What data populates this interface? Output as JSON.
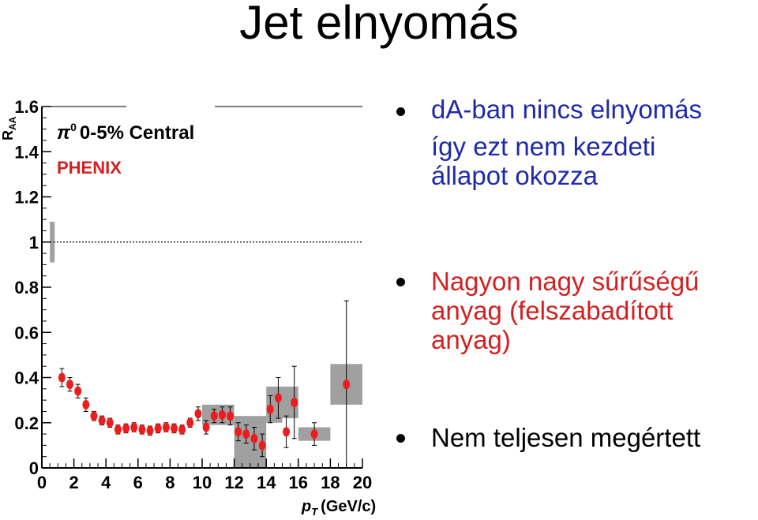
{
  "slide": {
    "title": "Jet elnyomás"
  },
  "bullets": [
    {
      "lines": [
        "dA-ban nincs elnyomás",
        "így ezt nem kezdeti",
        "állapot okozza"
      ],
      "color": "#1f2aa8"
    },
    {
      "lines": [
        "Nagyon nagy sűrűségű",
        "anyag (felszabadított",
        "anyag)"
      ],
      "color": "#d42020"
    },
    {
      "lines": [
        "Nem teljesen megértett"
      ],
      "color": "#000000"
    }
  ],
  "chart_data": {
    "type": "scatter",
    "xlabel": "p",
    "xlabel_sub": "T",
    "xlabel_unit": "(GeV/c)",
    "ylabel": "R",
    "ylabel_sub": "AA",
    "xlim": [
      0,
      20
    ],
    "ylim": [
      0,
      1.6
    ],
    "xticks": [
      "0",
      "2",
      "4",
      "6",
      "8",
      "10",
      "12",
      "14",
      "16",
      "18",
      "20"
    ],
    "yticks": [
      "0",
      "0.2",
      "0.4",
      "0.6",
      "0.8",
      "1",
      "1.2",
      "1.4",
      "1.6"
    ],
    "reference_line": 1,
    "annotation_species": "π",
    "annotation_species_sup": "0",
    "annotation_centrality": "0-5% Central",
    "experiment": "PHENIX",
    "colors": {
      "points": "#ee1c1c",
      "syst_box": "#a0a0a0",
      "experiment_label": "#d42020"
    },
    "points": [
      {
        "x": 1.25,
        "y": 0.4,
        "err": 0.04
      },
      {
        "x": 1.75,
        "y": 0.37,
        "err": 0.03
      },
      {
        "x": 2.25,
        "y": 0.34,
        "err": 0.03
      },
      {
        "x": 2.75,
        "y": 0.28,
        "err": 0.03
      },
      {
        "x": 3.25,
        "y": 0.23,
        "err": 0.02
      },
      {
        "x": 3.75,
        "y": 0.21,
        "err": 0.02
      },
      {
        "x": 4.25,
        "y": 0.2,
        "err": 0.02
      },
      {
        "x": 4.75,
        "y": 0.17,
        "err": 0.02
      },
      {
        "x": 5.25,
        "y": 0.175,
        "err": 0.02
      },
      {
        "x": 5.75,
        "y": 0.18,
        "err": 0.02
      },
      {
        "x": 6.25,
        "y": 0.17,
        "err": 0.02
      },
      {
        "x": 6.75,
        "y": 0.165,
        "err": 0.02
      },
      {
        "x": 7.25,
        "y": 0.175,
        "err": 0.02
      },
      {
        "x": 7.75,
        "y": 0.18,
        "err": 0.02
      },
      {
        "x": 8.25,
        "y": 0.175,
        "err": 0.02
      },
      {
        "x": 8.75,
        "y": 0.17,
        "err": 0.02
      },
      {
        "x": 9.25,
        "y": 0.2,
        "err": 0.02
      },
      {
        "x": 9.75,
        "y": 0.24,
        "err": 0.03
      },
      {
        "x": 10.25,
        "y": 0.18,
        "err": 0.03
      },
      {
        "x": 10.75,
        "y": 0.23,
        "err": 0.03
      },
      {
        "x": 11.25,
        "y": 0.235,
        "err": 0.035
      },
      {
        "x": 11.75,
        "y": 0.23,
        "err": 0.04
      },
      {
        "x": 12.25,
        "y": 0.16,
        "err": 0.04
      },
      {
        "x": 12.75,
        "y": 0.15,
        "err": 0.04
      },
      {
        "x": 13.25,
        "y": 0.13,
        "err": 0.05
      },
      {
        "x": 13.75,
        "y": 0.1,
        "err": 0.05
      },
      {
        "x": 14.25,
        "y": 0.26,
        "err": 0.06
      },
      {
        "x": 14.75,
        "y": 0.31,
        "err": 0.09
      },
      {
        "x": 15.25,
        "y": 0.16,
        "err": 0.07
      },
      {
        "x": 15.75,
        "y": 0.29,
        "err": 0.16
      },
      {
        "x": 17.0,
        "y": 0.15,
        "err": 0.05
      },
      {
        "x": 19.0,
        "y": 0.37,
        "err": 0.37
      }
    ],
    "syst_boxes": [
      {
        "x0": 0.5,
        "x1": 0.8,
        "y0": 0.91,
        "y1": 1.09
      },
      {
        "x0": 10.0,
        "x1": 12.0,
        "y0": 0.19,
        "y1": 0.28
      },
      {
        "x0": 12.0,
        "x1": 14.0,
        "y0": 0.0,
        "y1": 0.23
      },
      {
        "x0": 14.0,
        "x1": 15.0,
        "y0": 0.2,
        "y1": 0.36
      },
      {
        "x0": 15.0,
        "x1": 16.0,
        "y0": 0.22,
        "y1": 0.36
      },
      {
        "x0": 16.0,
        "x1": 18.0,
        "y0": 0.12,
        "y1": 0.18
      },
      {
        "x0": 18.0,
        "x1": 20.0,
        "y0": 0.28,
        "y1": 0.46
      }
    ]
  }
}
